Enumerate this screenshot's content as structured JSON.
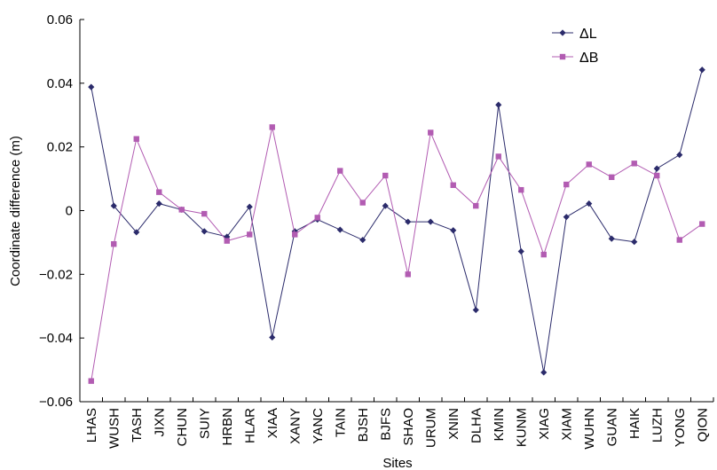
{
  "chart_data": {
    "type": "line",
    "title": "",
    "xlabel": "Sites",
    "ylabel": "Coordinate difference (m)",
    "ylim": [
      -0.06,
      0.06
    ],
    "yticks": [
      {
        "value": 0.06,
        "label": "0.06"
      },
      {
        "value": 0.04,
        "label": "0.04"
      },
      {
        "value": 0.02,
        "label": "0.02"
      },
      {
        "value": 0,
        "label": "0"
      },
      {
        "value": -0.02,
        "label": "−0.02"
      },
      {
        "value": -0.04,
        "label": "−0.04"
      },
      {
        "value": -0.06,
        "label": "−0.06"
      }
    ],
    "grid": false,
    "legend_position": "top-right",
    "categories": [
      "LHAS",
      "WUSH",
      "TASH",
      "JIXN",
      "CHUN",
      "SUIY",
      "HRBN",
      "HLAR",
      "XIAA",
      "XANY",
      "YANC",
      "TAIN",
      "BJSH",
      "BJFS",
      "SHAO",
      "URUM",
      "XNIN",
      "DLHA",
      "KMIN",
      "KUNM",
      "XIAG",
      "XIAM",
      "WUHN",
      "GUAN",
      "HAIK",
      "LUZH",
      "YONG",
      "QION"
    ],
    "series": [
      {
        "name": "ΔL",
        "color": "#2b2b6b",
        "marker": "diamond",
        "values": [
          0.0388,
          0.0015,
          -0.0068,
          0.0022,
          0.0003,
          -0.0065,
          -0.0082,
          0.0012,
          -0.0398,
          -0.0065,
          -0.0028,
          -0.006,
          -0.0092,
          0.0015,
          -0.0035,
          -0.0035,
          -0.0062,
          -0.0312,
          0.0332,
          -0.0128,
          -0.0508,
          -0.002,
          0.0022,
          -0.0088,
          -0.0098,
          0.0132,
          0.0175,
          0.0442
        ]
      },
      {
        "name": "ΔB",
        "color": "#b25cb2",
        "marker": "square",
        "values": [
          -0.0535,
          -0.0105,
          0.0225,
          0.0058,
          0.0003,
          -0.001,
          -0.0095,
          -0.0075,
          0.0262,
          -0.0075,
          -0.0022,
          0.0125,
          0.0025,
          0.011,
          -0.02,
          0.0245,
          0.008,
          0.0015,
          0.017,
          0.0065,
          -0.0138,
          0.0082,
          0.0145,
          0.0105,
          0.0148,
          0.011,
          -0.0092,
          -0.0042
        ]
      }
    ]
  }
}
